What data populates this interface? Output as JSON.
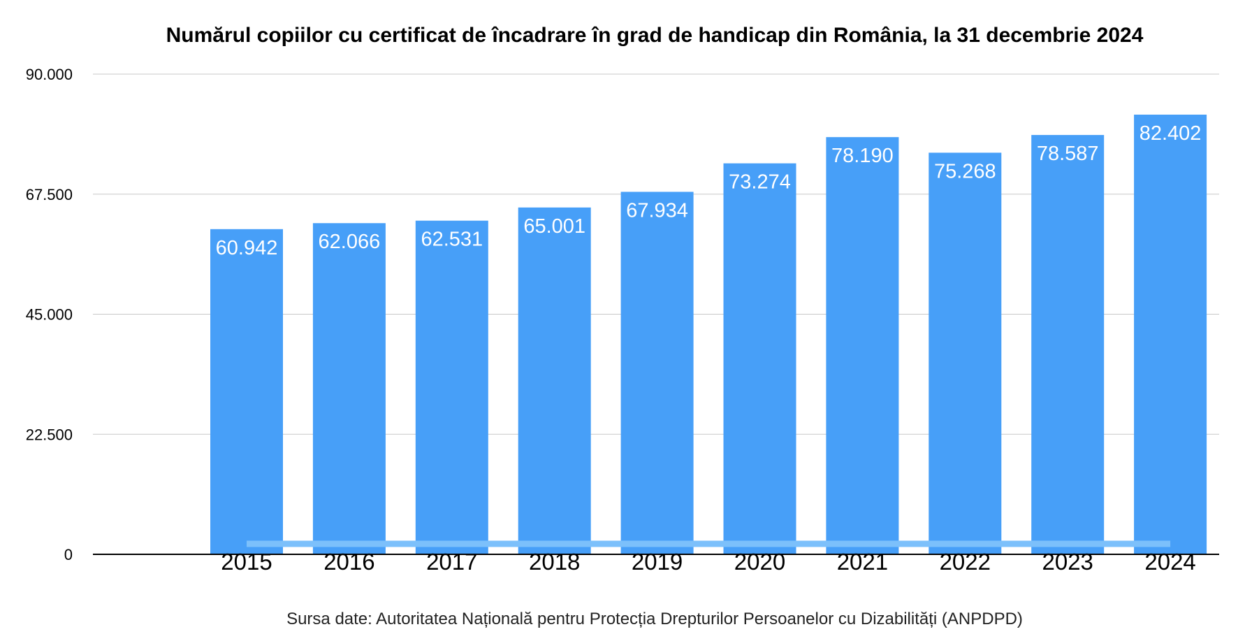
{
  "chart_data": {
    "type": "bar",
    "title": "Numărul copiilor cu certificat de încadrare în grad de handicap din România, la 31 decembrie 2024",
    "xlabel": "",
    "ylabel": "",
    "categories": [
      "2015",
      "2016",
      "2017",
      "2018",
      "2019",
      "2020",
      "2021",
      "2022",
      "2023",
      "2024"
    ],
    "values": [
      60942,
      62066,
      62531,
      65001,
      67934,
      73274,
      78190,
      75268,
      78587,
      82402
    ],
    "data_labels": [
      "60.942",
      "62.066",
      "62.531",
      "65.001",
      "67.934",
      "73.274",
      "78.190",
      "75.268",
      "78.587",
      "82.402"
    ],
    "ylim": [
      0,
      90000
    ],
    "y_ticks": [
      0,
      22500,
      45000,
      67500,
      90000
    ],
    "y_tick_labels": [
      "0",
      "22.500",
      "45.000",
      "67.500",
      "90.000"
    ],
    "grid": true,
    "legend": "none",
    "bar_color": "#479ff8",
    "baseline_highlight_color": "#7cc0fb",
    "source": "Sursa date: Autoritatea Națională pentru Protecția Drepturilor Persoanelor cu Dizabilități (ANPDPD)"
  }
}
